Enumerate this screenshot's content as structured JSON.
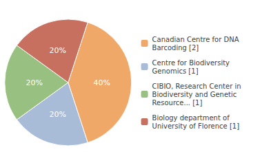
{
  "chart_data": {
    "type": "pie",
    "categories": [
      "Canadian Centre for DNA\nBarcoding [2]",
      "Centre for Biodiversity\nGenomics [1]",
      "CIBIO, Research Center in\nBiodiversity and Genetic\nResource... [1]",
      "Biology department of\nUniversity of Florence [1]"
    ],
    "values": [
      40,
      20,
      20,
      20
    ],
    "value_labels": [
      "40%",
      "20%",
      "20%",
      "20%"
    ],
    "colors": [
      "#f0a868",
      "#a8bcd8",
      "#98c080",
      "#c87060"
    ],
    "data_labels": true,
    "legend": "right"
  }
}
